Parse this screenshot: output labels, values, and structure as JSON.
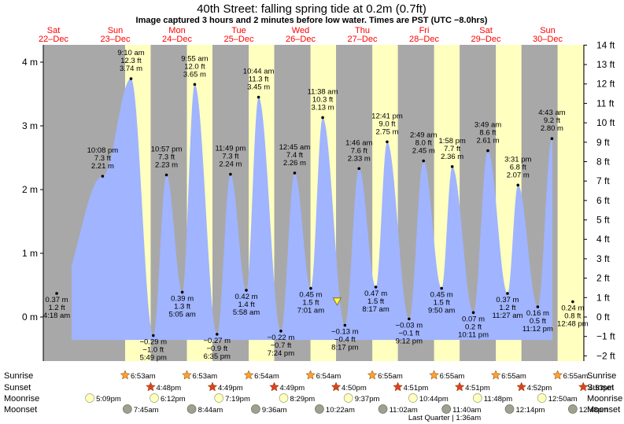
{
  "title": "40th Street: falling  spring tide at 0.2m (0.7ft)",
  "subtitle": "Image captured 3 hours and 2 minutes before low water. Times are PST (UTC −8.0hrs)",
  "days": [
    {
      "dow": "Sat",
      "date": "22–Dec"
    },
    {
      "dow": "Sun",
      "date": "23–Dec"
    },
    {
      "dow": "Mon",
      "date": "24–Dec"
    },
    {
      "dow": "Tue",
      "date": "25–Dec"
    },
    {
      "dow": "Wed",
      "date": "26–Dec"
    },
    {
      "dow": "Thu",
      "date": "27–Dec"
    },
    {
      "dow": "Fri",
      "date": "28–Dec"
    },
    {
      "dow": "Sat",
      "date": "29–Dec"
    },
    {
      "dow": "Sun",
      "date": "30–Dec"
    }
  ],
  "colors": {
    "night": "#a8a8a8",
    "day": "#ffffc0",
    "tide": "#a0b4ff",
    "text_red": "#ff0000",
    "star_sunrise": "#ffa030",
    "star_sunset": "#e04020",
    "moonrise": "#ffffc0",
    "moonset": "#a0a090"
  },
  "chart_data": {
    "type": "area",
    "x_unit": "hours since 22-Dec 00:00 PST",
    "y_left": {
      "label": "m",
      "range": [
        -0.72,
        4.26
      ],
      "ticks": [
        "4 m",
        "3 m",
        "2 m",
        "1 m",
        "0 m"
      ]
    },
    "y_right": {
      "label": "ft",
      "ticks": [
        "14 ft",
        "13 ft",
        "12 ft",
        "11 ft",
        "10 ft",
        "9 ft",
        "8 ft",
        "7 ft",
        "6 ft",
        "5 ft",
        "4 ft",
        "3 ft",
        "2 ft",
        "1 ft",
        "0 ft",
        "−1 ft",
        "−2 ft"
      ]
    },
    "series_name": "tide height",
    "extremes": [
      {
        "t": "4:18 am",
        "h": 0.37,
        "ft": "1.2",
        "day": 0,
        "type": "low"
      },
      {
        "t": "10:08 pm",
        "h": 2.21,
        "ft": "7.3",
        "day": 0,
        "type": "high"
      },
      {
        "t": "9:10 am",
        "h": 3.74,
        "ft": "12.3",
        "day": 1,
        "type": "high"
      },
      {
        "t": "5:49 pm",
        "h": -0.29,
        "ft": "−1.0",
        "day": 1,
        "type": "low"
      },
      {
        "t": "10:57 pm",
        "h": 2.23,
        "ft": "7.3",
        "day": 1,
        "type": "high"
      },
      {
        "t": "5:05 am",
        "h": 0.39,
        "ft": "1.3",
        "day": 2,
        "type": "low"
      },
      {
        "t": "9:55 am",
        "h": 3.65,
        "ft": "12.0",
        "day": 2,
        "type": "high"
      },
      {
        "t": "6:35 pm",
        "h": -0.27,
        "ft": "−0.9",
        "day": 2,
        "type": "low"
      },
      {
        "t": "11:49 pm",
        "h": 2.24,
        "ft": "7.3",
        "day": 2,
        "type": "high"
      },
      {
        "t": "5:58 am",
        "h": 0.42,
        "ft": "1.4",
        "day": 3,
        "type": "low"
      },
      {
        "t": "10:44 am",
        "h": 3.45,
        "ft": "11.3",
        "day": 3,
        "type": "high"
      },
      {
        "t": "7:24 pm",
        "h": -0.22,
        "ft": "−0.7",
        "day": 3,
        "type": "low"
      },
      {
        "t": "12:45 am",
        "h": 2.26,
        "ft": "7.4",
        "day": 4,
        "type": "high"
      },
      {
        "t": "7:01 am",
        "h": 0.45,
        "ft": "1.5",
        "day": 4,
        "type": "low"
      },
      {
        "t": "11:38 am",
        "h": 3.13,
        "ft": "10.3",
        "day": 4,
        "type": "high"
      },
      {
        "t": "8:17 pm",
        "h": -0.13,
        "ft": "−0.4",
        "day": 4,
        "type": "low"
      },
      {
        "t": "1:46 am",
        "h": 2.33,
        "ft": "7.6",
        "day": 5,
        "type": "high"
      },
      {
        "t": "8:17 am",
        "h": 0.47,
        "ft": "1.5",
        "day": 5,
        "type": "low"
      },
      {
        "t": "12:41 pm",
        "h": 2.75,
        "ft": "9.0",
        "day": 5,
        "type": "high"
      },
      {
        "t": "9:12 pm",
        "h": -0.03,
        "ft": "−0.1",
        "day": 5,
        "type": "low"
      },
      {
        "t": "2:49 am",
        "h": 2.45,
        "ft": "8.0",
        "day": 6,
        "type": "high"
      },
      {
        "t": "9:50 am",
        "h": 0.45,
        "ft": "1.5",
        "day": 6,
        "type": "low"
      },
      {
        "t": "1:58 pm",
        "h": 2.36,
        "ft": "7.7",
        "day": 6,
        "type": "high"
      },
      {
        "t": "10:11 pm",
        "h": 0.07,
        "ft": "0.2",
        "day": 6,
        "type": "low"
      },
      {
        "t": "3:49 am",
        "h": 2.61,
        "ft": "8.6",
        "day": 7,
        "type": "high"
      },
      {
        "t": "11:27 am",
        "h": 0.37,
        "ft": "1.2",
        "day": 7,
        "type": "low"
      },
      {
        "t": "3:31 pm",
        "h": 2.07,
        "ft": "6.8",
        "day": 7,
        "type": "high"
      },
      {
        "t": "11:12 pm",
        "h": 0.16,
        "ft": "0.5",
        "day": 7,
        "type": "low"
      },
      {
        "t": "4:43 am",
        "h": 2.8,
        "ft": "9.2",
        "day": 8,
        "type": "high"
      },
      {
        "t": "12:48 pm",
        "h": 0.24,
        "ft": "0.8",
        "day": 8,
        "type": "low"
      }
    ],
    "current_marker": {
      "h": 0.2,
      "day": 4,
      "t": "5:15 pm"
    },
    "grid": false
  },
  "events": {
    "labels": {
      "sunrise": "Sunrise",
      "sunset": "Sunset",
      "moonrise": "Moonrise",
      "moonset": "Moonset"
    },
    "sunrise": [
      {
        "day": 1,
        "t": "6:53am"
      },
      {
        "day": 2,
        "t": "6:53am"
      },
      {
        "day": 3,
        "t": "6:54am"
      },
      {
        "day": 4,
        "t": "6:54am"
      },
      {
        "day": 5,
        "t": "6:55am"
      },
      {
        "day": 6,
        "t": "6:55am"
      },
      {
        "day": 7,
        "t": "6:55am"
      },
      {
        "day": 8,
        "t": "6:55am"
      }
    ],
    "sunset": [
      {
        "day": 1,
        "t": "4:48pm"
      },
      {
        "day": 2,
        "t": "4:49pm"
      },
      {
        "day": 3,
        "t": "4:49pm"
      },
      {
        "day": 4,
        "t": "4:50pm"
      },
      {
        "day": 5,
        "t": "4:51pm"
      },
      {
        "day": 6,
        "t": "4:51pm"
      },
      {
        "day": 7,
        "t": "4:52pm"
      },
      {
        "day": 8,
        "t": "4:53pm"
      }
    ],
    "moonrise": [
      {
        "day": 0,
        "t": "5:09pm"
      },
      {
        "day": 1,
        "t": "6:12pm"
      },
      {
        "day": 2,
        "t": "7:19pm"
      },
      {
        "day": 3,
        "t": "8:29pm"
      },
      {
        "day": 4,
        "t": "9:37pm"
      },
      {
        "day": 5,
        "t": "10:44pm"
      },
      {
        "day": 6,
        "t": "11:48pm"
      },
      {
        "day": 8,
        "t": "12:50am"
      }
    ],
    "moonset": [
      {
        "day": 1,
        "t": "7:45am"
      },
      {
        "day": 2,
        "t": "8:44am"
      },
      {
        "day": 3,
        "t": "9:36am"
      },
      {
        "day": 4,
        "t": "10:22am"
      },
      {
        "day": 5,
        "t": "11:02am"
      },
      {
        "day": 6,
        "t": "11:40am"
      },
      {
        "day": 7,
        "t": "12:14pm"
      },
      {
        "day": 8,
        "t": "12:48pm"
      }
    ],
    "moon_phase": {
      "text": "Last Quarter | 1:36am",
      "day": 7
    }
  }
}
